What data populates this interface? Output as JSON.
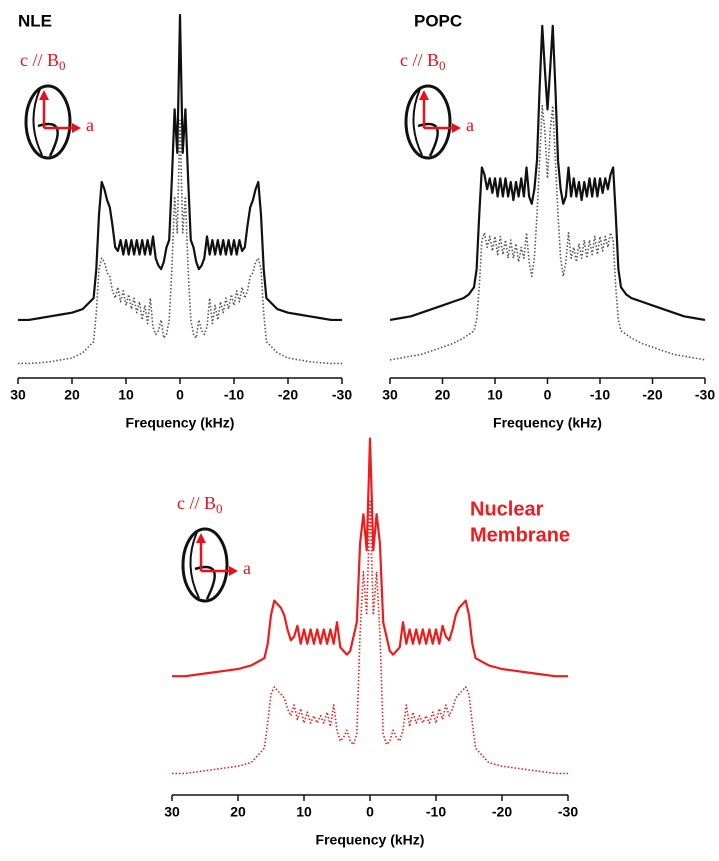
{
  "chart_data": [
    {
      "type": "line",
      "title": "NLE",
      "x_label": "Frequency (kHz)",
      "inset": {
        "c_label": "c // B",
        "subscript": "0",
        "a_label": "a"
      },
      "xlim": [
        30,
        -30
      ],
      "xticks": [
        30,
        20,
        10,
        0,
        -10,
        -20,
        -30
      ],
      "ylim": [
        0,
        100
      ],
      "x": [
        30,
        28,
        26,
        24,
        22,
        20,
        18,
        16,
        15.5,
        15,
        14.5,
        14,
        13.5,
        13,
        12.5,
        12,
        11.5,
        11,
        10.5,
        10,
        9.5,
        9,
        8.5,
        8,
        7.5,
        7,
        6.5,
        6,
        5.5,
        5,
        4.5,
        4,
        3.5,
        3,
        2.5,
        2,
        1.5,
        1,
        0.5,
        0,
        -0.5,
        -1,
        -1.5,
        -2,
        -2.5,
        -3,
        -3.5,
        -4,
        -4.5,
        -5,
        -5.5,
        -6,
        -6.5,
        -7,
        -7.5,
        -8,
        -8.5,
        -9,
        -9.5,
        -10,
        -10.5,
        -11,
        -11.5,
        -12,
        -12.5,
        -13,
        -13.5,
        -14,
        -14.5,
        -15,
        -15.5,
        -16,
        -18,
        -20,
        -22,
        -24,
        -26,
        -28,
        -30
      ],
      "series": [
        {
          "color": "#111111",
          "line_style": "solid",
          "values": [
            16,
            16,
            16.5,
            17,
            17.5,
            18,
            19,
            22,
            30,
            45,
            54,
            52,
            49,
            47,
            42,
            36,
            35,
            38,
            34,
            38,
            34,
            38,
            34,
            38,
            34,
            38,
            34,
            38,
            34,
            39,
            33,
            31,
            30,
            32,
            36,
            38,
            55,
            74,
            62,
            100,
            62,
            74,
            55,
            38,
            36,
            32,
            30,
            31,
            33,
            39,
            34,
            38,
            34,
            38,
            34,
            38,
            34,
            38,
            34,
            38,
            34,
            38,
            35,
            36,
            42,
            47,
            49,
            52,
            54,
            45,
            30,
            22,
            19,
            18,
            17.5,
            17,
            16.5,
            16,
            16
          ]
        },
        {
          "color": "#555555",
          "line_style": "dotted",
          "values": [
            4,
            4,
            4.2,
            4.5,
            5,
            5.5,
            7,
            10,
            18,
            30,
            33,
            32,
            29,
            28,
            24,
            22,
            25,
            21,
            24,
            20,
            23,
            19,
            22,
            18,
            21,
            16,
            20,
            15,
            22,
            14,
            12,
            13,
            16,
            11,
            12,
            16,
            30,
            50,
            40,
            71,
            40,
            50,
            30,
            16,
            12,
            11,
            16,
            13,
            12,
            14,
            22,
            15,
            20,
            16,
            21,
            18,
            22,
            19,
            23,
            20,
            24,
            21,
            25,
            22,
            24,
            28,
            29,
            32,
            33,
            30,
            18,
            10,
            7,
            5.5,
            5,
            4.5,
            4.2,
            4,
            4
          ]
        }
      ]
    },
    {
      "type": "line",
      "title": "POPC",
      "x_label": "Frequency (kHz)",
      "inset": {
        "c_label": "c // B",
        "subscript": "0",
        "a_label": "a"
      },
      "xlim": [
        30,
        -30
      ],
      "xticks": [
        30,
        20,
        10,
        0,
        -10,
        -20,
        -30
      ],
      "ylim": [
        0,
        100
      ],
      "x": [
        30,
        28,
        26,
        24,
        22,
        20,
        18,
        16,
        15.5,
        15,
        14.5,
        14,
        13.5,
        13,
        12.5,
        12,
        11.5,
        11,
        10.5,
        10,
        9.5,
        9,
        8.5,
        8,
        7.5,
        7,
        6.5,
        6,
        5.5,
        5,
        4.5,
        4,
        3.5,
        3,
        2.5,
        2,
        1.5,
        1,
        0.5,
        0,
        -0.5,
        -1,
        -1.5,
        -2,
        -2.5,
        -3,
        -3.5,
        -4,
        -4.5,
        -5,
        -5.5,
        -6,
        -6.5,
        -7,
        -7.5,
        -8,
        -8.5,
        -9,
        -9.5,
        -10,
        -10.5,
        -11,
        -11.5,
        -12,
        -12.5,
        -13,
        -13.5,
        -14,
        -14.5,
        -15,
        -15.5,
        -16,
        -18,
        -20,
        -22,
        -24,
        -26,
        -28,
        -30
      ],
      "series": [
        {
          "color": "#111111",
          "line_style": "solid",
          "values": [
            16,
            16.5,
            17,
            18,
            19,
            20,
            21,
            22,
            22.5,
            23,
            24,
            25,
            30,
            45,
            58,
            56,
            52,
            55,
            51,
            55,
            50,
            55,
            50,
            55,
            50,
            54,
            49,
            54,
            50,
            55,
            50,
            58,
            50,
            48,
            52,
            60,
            80,
            97,
            85,
            74,
            85,
            97,
            80,
            60,
            52,
            48,
            50,
            58,
            50,
            55,
            50,
            54,
            49,
            54,
            50,
            55,
            50,
            55,
            50,
            55,
            51,
            55,
            52,
            56,
            58,
            45,
            30,
            25,
            24,
            23,
            22.5,
            22,
            21,
            20,
            19,
            18,
            17,
            16.5,
            16
          ]
        },
        {
          "color": "#555555",
          "line_style": "dotted",
          "values": [
            5,
            5.5,
            6,
            6.5,
            7.5,
            8.5,
            9.5,
            11,
            11.5,
            12,
            12.5,
            13,
            16,
            25,
            38,
            40,
            36,
            39,
            35,
            39,
            34,
            39,
            34,
            38,
            33,
            38,
            33,
            37,
            32,
            36,
            33,
            40,
            32,
            28,
            33,
            45,
            60,
            75,
            68,
            55,
            68,
            75,
            60,
            45,
            33,
            28,
            32,
            40,
            33,
            36,
            32,
            37,
            33,
            38,
            33,
            38,
            34,
            39,
            34,
            39,
            35,
            39,
            36,
            40,
            38,
            25,
            16,
            13,
            12.5,
            12,
            11.5,
            11,
            9.5,
            8.5,
            7.5,
            6.5,
            6,
            5.5,
            5
          ]
        }
      ]
    },
    {
      "type": "line",
      "annotation": [
        "Nuclear",
        "Membrane"
      ],
      "x_label": "Frequency (kHz)",
      "inset": {
        "c_label": "c // B",
        "subscript": "0",
        "a_label": "a"
      },
      "xlim": [
        30,
        -30
      ],
      "xticks": [
        30,
        20,
        10,
        0,
        -10,
        -20,
        -30
      ],
      "ylim": [
        0,
        100
      ],
      "x": [
        30,
        28,
        26,
        24,
        22,
        20,
        18,
        16,
        15.5,
        15,
        14.5,
        14,
        13.5,
        13,
        12.5,
        12,
        11.5,
        11,
        10.5,
        10,
        9.5,
        9,
        8.5,
        8,
        7.5,
        7,
        6.5,
        6,
        5.5,
        5,
        4.5,
        4,
        3.5,
        3,
        2.5,
        2,
        1.5,
        1,
        0.5,
        0,
        -0.5,
        -1,
        -1.5,
        -2,
        -2.5,
        -3,
        -3.5,
        -4,
        -4.5,
        -5,
        -5.5,
        -6,
        -6.5,
        -7,
        -7.5,
        -8,
        -8.5,
        -9,
        -9.5,
        -10,
        -10.5,
        -11,
        -11.5,
        -12,
        -12.5,
        -13,
        -13.5,
        -14,
        -14.5,
        -15,
        -15.5,
        -16,
        -18,
        -20,
        -22,
        -24,
        -26,
        -28,
        -30
      ],
      "series": [
        {
          "color": "#ee1c1c",
          "line_style": "solid",
          "values": [
            33,
            33,
            33.5,
            34,
            34.5,
            35,
            36,
            38,
            42,
            50,
            54,
            53,
            52,
            50,
            46,
            43,
            44,
            47,
            42,
            46,
            42,
            46,
            42,
            46,
            42,
            46,
            42,
            46,
            42,
            48,
            41,
            40,
            39,
            40,
            44,
            48,
            70,
            78,
            68,
            99,
            68,
            78,
            70,
            48,
            44,
            40,
            39,
            40,
            41,
            48,
            42,
            46,
            42,
            46,
            42,
            46,
            42,
            46,
            42,
            46,
            42,
            47,
            44,
            43,
            46,
            50,
            52,
            53,
            54,
            50,
            42,
            38,
            36,
            35,
            34.5,
            34,
            33.5,
            33,
            33
          ]
        },
        {
          "color": "#ee1c1c",
          "line_style": "dotted",
          "values": [
            6,
            6,
            6.5,
            7,
            7.5,
            8,
            9,
            13,
            20,
            28,
            30,
            29,
            28,
            27,
            24,
            22,
            25,
            21,
            24,
            20,
            23,
            20,
            22,
            20,
            22,
            20,
            23,
            19,
            25,
            18,
            15,
            16,
            18,
            15,
            14,
            17,
            45,
            62,
            50,
            82,
            50,
            62,
            45,
            17,
            14,
            15,
            18,
            16,
            15,
            18,
            25,
            19,
            23,
            20,
            22,
            20,
            22,
            20,
            23,
            20,
            24,
            21,
            25,
            22,
            24,
            27,
            28,
            29,
            30,
            28,
            20,
            13,
            9,
            8,
            7.5,
            7,
            6.5,
            6,
            6
          ]
        }
      ]
    }
  ]
}
